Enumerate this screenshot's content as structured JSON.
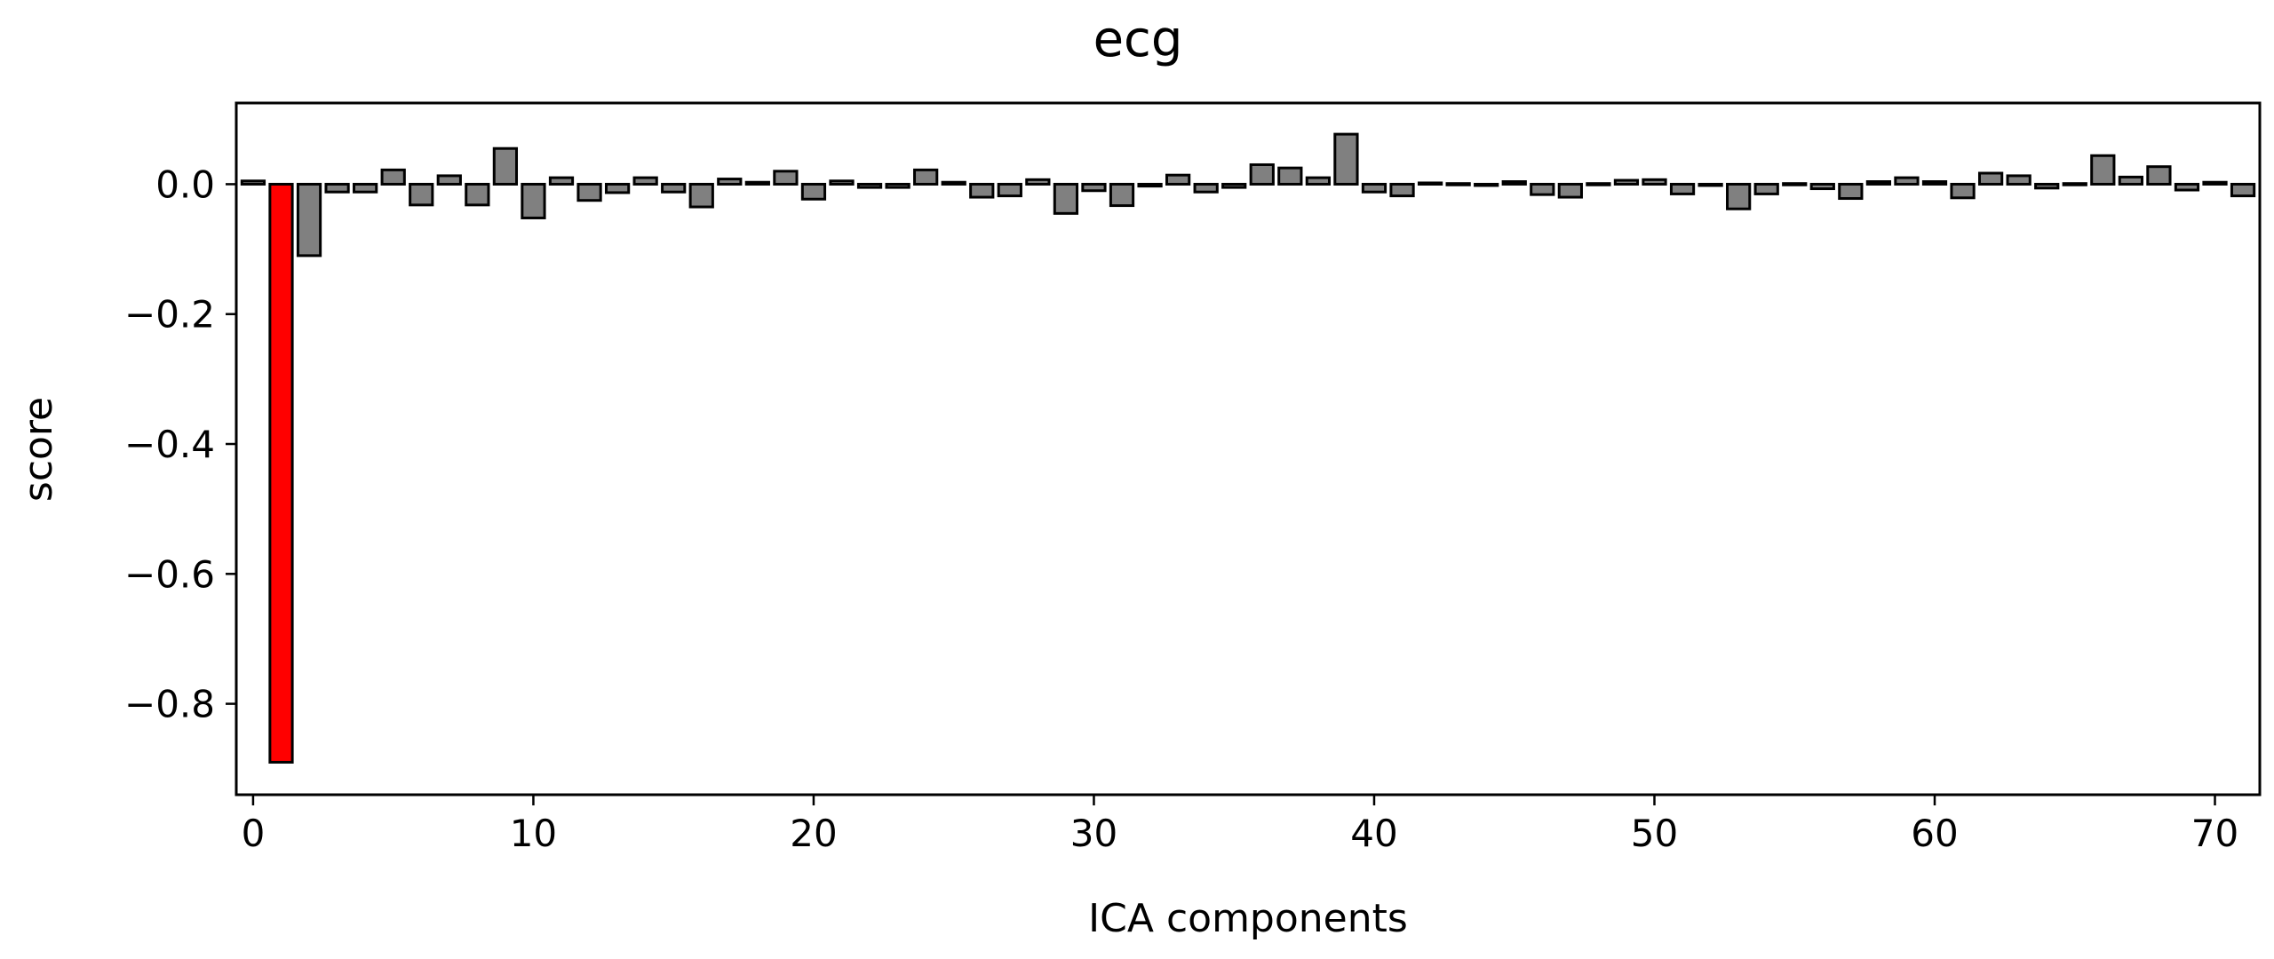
{
  "chart_data": {
    "type": "bar",
    "title": "ecg",
    "xlabel": "ICA components",
    "ylabel": "score",
    "xlim": [
      -0.6,
      71.6
    ],
    "ylim": [
      -0.94,
      0.125
    ],
    "xticks": [
      0,
      10,
      20,
      30,
      40,
      50,
      60,
      70
    ],
    "yticks": [
      0.0,
      -0.2,
      -0.4,
      -0.6,
      -0.8
    ],
    "ytick_labels": [
      "0.0",
      "−0.2",
      "−0.4",
      "−0.6",
      "−0.8"
    ],
    "grid": false,
    "bar_color": "#808080",
    "highlight_color": "#ff0000",
    "edge_color": "#000000",
    "highlighted_indices": [
      1
    ],
    "x": [
      0,
      1,
      2,
      3,
      4,
      5,
      6,
      7,
      8,
      9,
      10,
      11,
      12,
      13,
      14,
      15,
      16,
      17,
      18,
      19,
      20,
      21,
      22,
      23,
      24,
      25,
      26,
      27,
      28,
      29,
      30,
      31,
      32,
      33,
      34,
      35,
      36,
      37,
      38,
      39,
      40,
      41,
      42,
      43,
      44,
      45,
      46,
      47,
      48,
      49,
      50,
      51,
      52,
      53,
      54,
      55,
      56,
      57,
      58,
      59,
      60,
      61,
      62,
      63,
      64,
      65,
      66,
      67,
      68,
      69,
      70,
      71
    ],
    "values": [
      0.005,
      -0.89,
      -0.11,
      -0.012,
      -0.012,
      0.022,
      -0.032,
      0.013,
      -0.032,
      0.055,
      -0.052,
      0.01,
      -0.025,
      -0.013,
      0.01,
      -0.012,
      -0.035,
      0.008,
      0.003,
      0.02,
      -0.023,
      0.005,
      -0.005,
      -0.005,
      0.022,
      0.003,
      -0.02,
      -0.018,
      0.007,
      -0.045,
      -0.01,
      -0.033,
      -0.003,
      0.014,
      -0.012,
      -0.005,
      0.03,
      0.025,
      0.01,
      0.077,
      -0.012,
      -0.018,
      0.002,
      0.001,
      -0.002,
      0.004,
      -0.016,
      -0.02,
      0.001,
      0.006,
      0.007,
      -0.015,
      -0.002,
      -0.038,
      -0.015,
      0.001,
      -0.007,
      -0.022,
      0.004,
      0.01,
      0.004,
      -0.021,
      0.017,
      0.013,
      -0.006,
      0.001,
      0.044,
      0.011,
      0.027,
      -0.009,
      0.003,
      -0.018
    ]
  }
}
